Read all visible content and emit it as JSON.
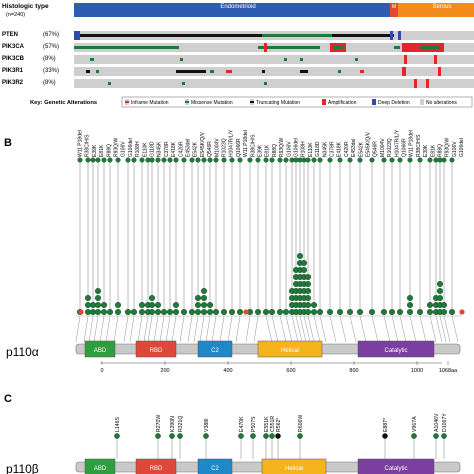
{
  "panelA": {
    "header_label": "Histologic type",
    "header_sub": "(n=240)",
    "type_labels": [
      "Endometrioid",
      "M",
      "Serous"
    ],
    "rows": [
      {
        "gene": "PTEN",
        "pct": "(67%)"
      },
      {
        "gene": "PIK3CA",
        "pct": "(57%)"
      },
      {
        "gene": "PIK3CB",
        "pct": "(8%)"
      },
      {
        "gene": "PIK3R1",
        "pct": "(33%)"
      },
      {
        "gene": "PIK3R2",
        "pct": "(8%)"
      }
    ],
    "key_title": "Key: Genetic Alterations",
    "legend": [
      {
        "label": "Inframe Mutation",
        "color": "#d0312d"
      },
      {
        "label": "Missense Mutation",
        "color": "#1f7a3a"
      },
      {
        "label": "Truncating Mutation",
        "color": "#111111"
      },
      {
        "label": "Amplification",
        "color": "#e8232a"
      },
      {
        "label": "Deep Deletion",
        "color": "#2d4ea3"
      },
      {
        "label": "No alterations",
        "color": "#cfcfcf"
      }
    ]
  },
  "panelB": {
    "panel_label": "B",
    "protein": "p110α",
    "domains": [
      "ABD",
      "RBD",
      "C2",
      "Helical",
      "Catalytic"
    ],
    "axis_ticks": [
      "0",
      "200",
      "400",
      "600",
      "800",
      "1000",
      "1068aa"
    ],
    "mutations": [
      "W11 P18del",
      "R38C/H/S",
      "E39K",
      "E81K",
      "R88Q",
      "R93Q/W",
      "G106V",
      "G106del",
      "R108H",
      "E110K",
      "G118D",
      "N345K",
      "C378R",
      "E418K",
      "C420R",
      "E453del",
      "E542K",
      "E545K/Q/V",
      "Q546R",
      "M1004V",
      "R1023Q",
      "H1047R/L/Y",
      "Q1066R"
    ],
    "colors": {
      "ABD": "#2e9f3e",
      "RBD": "#e0473a",
      "C2": "#1e88c9",
      "Helical": "#f5b41e",
      "Catalytic": "#7b3fa0",
      "dot": "#1f7a3a"
    }
  },
  "panelC": {
    "panel_label": "C",
    "protein": "p110β",
    "domains": [
      "ABD",
      "RBD",
      "C2",
      "Helical",
      "Catalytic"
    ],
    "mutations": [
      "L146S",
      "R270W",
      "K290N",
      "R321Q",
      "V388I",
      "E470K",
      "P507S",
      "E551K",
      "C551R",
      "R562*",
      "R606W",
      "E887*",
      "V967A",
      "A1046V",
      "D1067Y"
    ]
  }
}
